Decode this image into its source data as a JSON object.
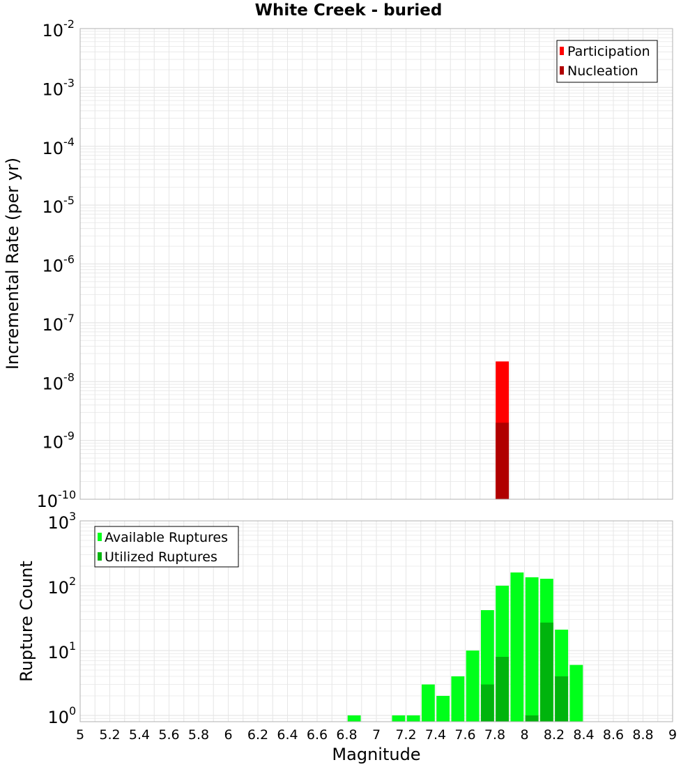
{
  "title": "White Creek - buried",
  "xlabel": "Magnitude",
  "x_ticks": [
    "5",
    "5.2",
    "5.4",
    "5.6",
    "5.8",
    "6",
    "6.2",
    "6.4",
    "6.6",
    "6.8",
    "7",
    "7.2",
    "7.4",
    "7.6",
    "7.8",
    "8",
    "8.2",
    "8.4",
    "8.6",
    "8.8",
    "9"
  ],
  "colors": {
    "participation": "#ff0000",
    "nucleation": "#b00000",
    "available": "#00ff1a",
    "utilized": "#00b40d",
    "grid": "#e6e6e6",
    "frame": "#b0b0b0"
  },
  "chart_data": [
    {
      "type": "bar",
      "name": "rate_panel",
      "title": "White Creek - buried",
      "xlabel": "Magnitude",
      "ylabel": "Incremental Rate (per yr)",
      "yscale": "log",
      "xlim": [
        5,
        9
      ],
      "ylim": [
        1e-10,
        0.01
      ],
      "y_ticks": [
        {
          "base": "10",
          "exp": "-10"
        },
        {
          "base": "10",
          "exp": "-9"
        },
        {
          "base": "10",
          "exp": "-8"
        },
        {
          "base": "10",
          "exp": "-7"
        },
        {
          "base": "10",
          "exp": "-6"
        },
        {
          "base": "10",
          "exp": "-5"
        },
        {
          "base": "10",
          "exp": "-4"
        },
        {
          "base": "10",
          "exp": "-3"
        },
        {
          "base": "10",
          "exp": "-2"
        }
      ],
      "legend": {
        "position": "top-right",
        "entries": [
          "Participation",
          "Nucleation"
        ]
      },
      "series": [
        {
          "name": "Participation",
          "x": [
            7.85
          ],
          "values": [
            2.2e-08
          ]
        },
        {
          "name": "Nucleation",
          "x": [
            7.85
          ],
          "values": [
            2e-09
          ]
        }
      ]
    },
    {
      "type": "bar",
      "name": "count_panel",
      "xlabel": "Magnitude",
      "ylabel": "Rupture Count",
      "yscale": "log",
      "xlim": [
        5,
        9
      ],
      "ylim": [
        0.8,
        1000
      ],
      "y_ticks": [
        {
          "base": "10",
          "exp": "0"
        },
        {
          "base": "10",
          "exp": "1"
        },
        {
          "base": "10",
          "exp": "2"
        },
        {
          "base": "10",
          "exp": "3"
        }
      ],
      "legend": {
        "position": "top-left",
        "entries": [
          "Available Ruptures",
          "Utilized Ruptures"
        ]
      },
      "series": [
        {
          "name": "Available Ruptures",
          "x": [
            6.85,
            7.15,
            7.25,
            7.35,
            7.45,
            7.55,
            7.65,
            7.75,
            7.85,
            7.95,
            8.05,
            8.15,
            8.25,
            8.35
          ],
          "values": [
            1,
            1,
            1,
            3,
            2,
            4,
            10,
            42,
            100,
            160,
            135,
            128,
            21,
            6
          ]
        },
        {
          "name": "Utilized Ruptures",
          "x": [
            7.75,
            7.85,
            8.05,
            8.15,
            8.25
          ],
          "values": [
            3,
            8,
            1,
            27,
            4
          ]
        }
      ]
    }
  ]
}
